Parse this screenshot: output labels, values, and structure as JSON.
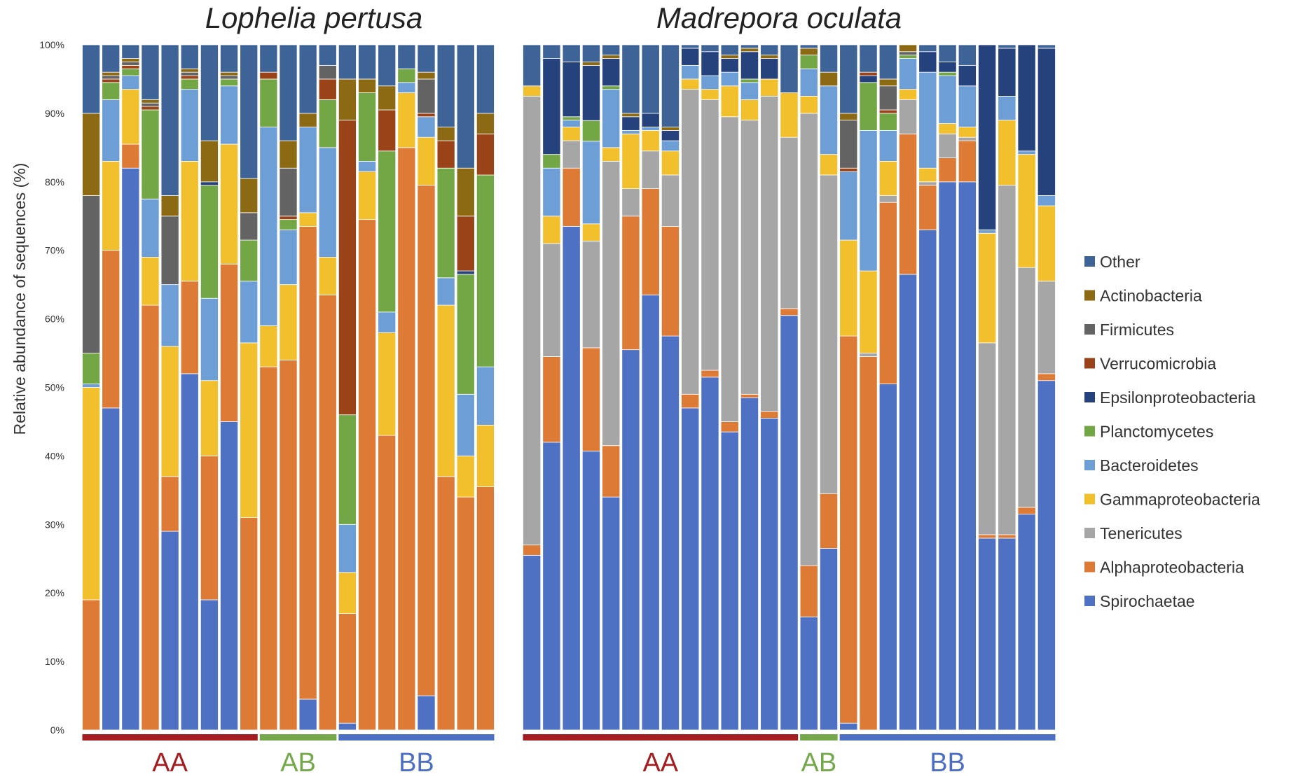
{
  "chart_data": {
    "type": "bar",
    "subtype": "stacked-100-percent",
    "ylabel": "Relative abundance  of sequences (%)",
    "yticks": [
      "0%",
      "10%",
      "20%",
      "30%",
      "40%",
      "50%",
      "60%",
      "70%",
      "80%",
      "90%",
      "100%"
    ],
    "ylim": [
      0,
      100
    ],
    "legend_position": "right",
    "series_order": [
      "Spirochaetae",
      "Alphaproteobacteria",
      "Tenericutes",
      "Gammaproteobacteria",
      "Bacteroidetes",
      "Planctomycetes",
      "Epsilonproteobacteria",
      "Verrucomicrobia",
      "Firmicutes",
      "Actinobacteria",
      "Other"
    ],
    "legend": [
      {
        "name": "Other",
        "color": "#3e6497"
      },
      {
        "name": "Actinobacteria",
        "color": "#8c6a14"
      },
      {
        "name": "Firmicutes",
        "color": "#636363"
      },
      {
        "name": "Verrucomicrobia",
        "color": "#9a4319"
      },
      {
        "name": "Epsilonproteobacteria",
        "color": "#26427d"
      },
      {
        "name": "Planctomycetes",
        "color": "#73a746"
      },
      {
        "name": "Bacteroidetes",
        "color": "#6d9fd6"
      },
      {
        "name": "Gammaproteobacteria",
        "color": "#f2bf2d"
      },
      {
        "name": "Tenericutes",
        "color": "#a6a6a6"
      },
      {
        "name": "Alphaproteobacteria",
        "color": "#dd7a35"
      },
      {
        "name": "Spirochaetae",
        "color": "#4e71c3"
      }
    ],
    "panels": [
      {
        "title": "Lophelia pertusa",
        "groups": [
          {
            "label": "AA",
            "color": "#a31d21",
            "bars": 9
          },
          {
            "label": "AB",
            "color": "#75a84a",
            "bars": 4
          },
          {
            "label": "BB",
            "color": "#4c6fc4",
            "bars": 8
          }
        ],
        "bars": [
          [
            0,
            19,
            0,
            31,
            0.5,
            4.5,
            0,
            0,
            23,
            12,
            10
          ],
          [
            47,
            23,
            0,
            13,
            9,
            2.5,
            0,
            0.5,
            0.5,
            0.5,
            4
          ],
          [
            82,
            3.5,
            0,
            8,
            2,
            1,
            0,
            0.5,
            0.5,
            0.5,
            2
          ],
          [
            0,
            62,
            0,
            7,
            8.5,
            13,
            0,
            0.5,
            0.5,
            0.5,
            8
          ],
          [
            29,
            8,
            0,
            19,
            9,
            0,
            0,
            0,
            10,
            3,
            22
          ],
          [
            52,
            13.5,
            0,
            17.5,
            10.5,
            1.5,
            0,
            0.5,
            0.5,
            0.5,
            3.5
          ],
          [
            19,
            21,
            0,
            11,
            12,
            16.5,
            0.5,
            0,
            0,
            6,
            14
          ],
          [
            45,
            23,
            0,
            17.5,
            8.5,
            1,
            0,
            0,
            0.5,
            0.5,
            4
          ],
          [
            0,
            31,
            0,
            25.5,
            9,
            6,
            0,
            0,
            4,
            5,
            19.5
          ],
          [
            0,
            53,
            0,
            6,
            29,
            7,
            0,
            1,
            0,
            0,
            4
          ],
          [
            0,
            54,
            0,
            11,
            8,
            1.5,
            0,
            0.5,
            7,
            4,
            14
          ],
          [
            4.5,
            69,
            0,
            2,
            12.5,
            0,
            0,
            0,
            0,
            2,
            10
          ],
          [
            0,
            63.5,
            0,
            5.5,
            16,
            7,
            0,
            3,
            2,
            0,
            3
          ],
          [
            1,
            16,
            0,
            6,
            7,
            16,
            0,
            43,
            0,
            6,
            5
          ],
          [
            0,
            74.5,
            0,
            7,
            1.5,
            10,
            0,
            0,
            0,
            2,
            5
          ],
          [
            0,
            43,
            0,
            15,
            3,
            23.5,
            0,
            6,
            0,
            3.5,
            6
          ],
          [
            0,
            85,
            0,
            8,
            1.5,
            2,
            0,
            0,
            0,
            0,
            3.5
          ],
          [
            5,
            74.5,
            0,
            7,
            3,
            0,
            0,
            0.5,
            5,
            1,
            4
          ],
          [
            0,
            37,
            0,
            25,
            4,
            16,
            0,
            4,
            0,
            2,
            12
          ],
          [
            0,
            34,
            0,
            6,
            9,
            17.5,
            0.5,
            8,
            0,
            7,
            18
          ],
          [
            0,
            35.5,
            0,
            9,
            8.5,
            28,
            0,
            6,
            0,
            3,
            10
          ]
        ]
      },
      {
        "title": "Madrepora oculata",
        "groups": [
          {
            "label": "AA",
            "color": "#a31d21",
            "bars": 14
          },
          {
            "label": "AB",
            "color": "#75a84a",
            "bars": 2
          },
          {
            "label": "BB",
            "color": "#4c6fc4",
            "bars": 11
          }
        ],
        "bars": [
          [
            25.5,
            1.5,
            65.5,
            1.5,
            0,
            0,
            0,
            0,
            0,
            0,
            6
          ],
          [
            42,
            12.5,
            16.5,
            4,
            7,
            2,
            14,
            0,
            0,
            0,
            2
          ],
          [
            73.5,
            8.5,
            4,
            2,
            1,
            0.5,
            8,
            0,
            0,
            0,
            2.5
          ],
          [
            40.5,
            15,
            15.5,
            2.5,
            12,
            3,
            8,
            0,
            0,
            0.5,
            2.5
          ],
          [
            34,
            7.5,
            41.5,
            2,
            8.5,
            0.5,
            4,
            0,
            0,
            0.5,
            1.5
          ],
          [
            55.5,
            19.5,
            4,
            8,
            0.5,
            0,
            2,
            0,
            0,
            0.5,
            10
          ],
          [
            63.5,
            15.5,
            5.5,
            3,
            0.5,
            0,
            2,
            0,
            0,
            0,
            10
          ],
          [
            57.5,
            16,
            7.5,
            3.5,
            1.5,
            0,
            1.5,
            0,
            0,
            0.5,
            12
          ],
          [
            47,
            2,
            44.5,
            1.5,
            2,
            0,
            2.5,
            0,
            0,
            0,
            0.5
          ],
          [
            51.5,
            1,
            39.5,
            1.5,
            2,
            0,
            3.5,
            0,
            0,
            0,
            1
          ],
          [
            43.5,
            1.5,
            44.5,
            4.5,
            2,
            0,
            2,
            0,
            0,
            0.5,
            1.5
          ],
          [
            48.5,
            0.5,
            40,
            3,
            2.5,
            0.5,
            4,
            0,
            0,
            0.5,
            0.5
          ],
          [
            45.5,
            1,
            46,
            2.5,
            0,
            0,
            3,
            0,
            0,
            0.5,
            1.5
          ],
          [
            60.5,
            1,
            25,
            6.5,
            0,
            0,
            0,
            0,
            0,
            0,
            7
          ],
          [
            16.5,
            7.5,
            66,
            2.5,
            4,
            2,
            0,
            0,
            0,
            1,
            0.5
          ],
          [
            26.5,
            8,
            46.5,
            3,
            10,
            0,
            0,
            0,
            0,
            2,
            4
          ],
          [
            1,
            56.5,
            0,
            14,
            10,
            0,
            0,
            0.5,
            7,
            1,
            10
          ],
          [
            0,
            54.5,
            0.5,
            12,
            20.5,
            7,
            1,
            0.5,
            0,
            0,
            4
          ],
          [
            50.5,
            26.5,
            1,
            5,
            4.5,
            2.5,
            0,
            0.5,
            3.5,
            1,
            5
          ],
          [
            66.5,
            20.5,
            5,
            1.5,
            4.5,
            0.5,
            0,
            0,
            0.5,
            1,
            0
          ],
          [
            73,
            6.5,
            0.5,
            2,
            14,
            0,
            3,
            0,
            0,
            0,
            1
          ],
          [
            80,
            3.5,
            3.5,
            1.5,
            7,
            0.5,
            1.5,
            0,
            0,
            0,
            2.5
          ],
          [
            80,
            6,
            0.5,
            1.5,
            6,
            0,
            3,
            0,
            0,
            0,
            3
          ],
          [
            28,
            0.5,
            28,
            16,
            0.5,
            0,
            27,
            0,
            0,
            0,
            0
          ],
          [
            28,
            0.5,
            51,
            9.5,
            3.5,
            0,
            7,
            0,
            0,
            0,
            0.5
          ],
          [
            31.5,
            1,
            35,
            16.5,
            0.5,
            0,
            15.5,
            0,
            0,
            0,
            0
          ],
          [
            51,
            1,
            13.5,
            11,
            1.5,
            0,
            21.5,
            0,
            0,
            0,
            0.5
          ]
        ]
      }
    ]
  }
}
